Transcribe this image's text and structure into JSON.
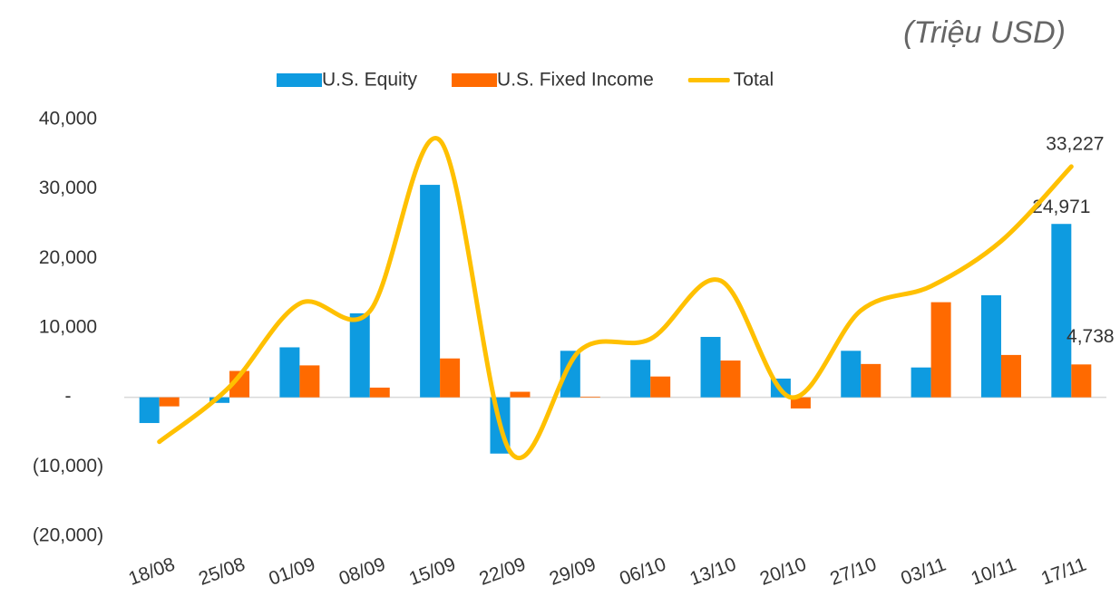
{
  "chart_data": {
    "type": "bar-line",
    "subtitle": "(Triệu USD)",
    "categories": [
      "18/08",
      "25/08",
      "01/09",
      "08/09",
      "15/09",
      "22/09",
      "29/09",
      "06/10",
      "13/10",
      "20/10",
      "27/10",
      "03/11",
      "10/11",
      "17/11"
    ],
    "series": [
      {
        "name": "U.S. Equity",
        "type": "bar",
        "color": "#0e9be0",
        "values": [
          -3700,
          -800,
          7200,
          12100,
          30600,
          -8100,
          6700,
          5400,
          8700,
          2700,
          6700,
          4300,
          14700,
          24971
        ],
        "value_labels": [
          null,
          null,
          null,
          null,
          null,
          null,
          null,
          null,
          null,
          null,
          null,
          null,
          null,
          "24,971"
        ]
      },
      {
        "name": "U.S. Fixed Income",
        "type": "bar",
        "color": "#ff6a00",
        "values": [
          -1300,
          3800,
          4600,
          1400,
          5600,
          800,
          100,
          3000,
          5300,
          -1600,
          4800,
          13700,
          6100,
          4738
        ],
        "value_labels": [
          null,
          null,
          null,
          null,
          null,
          null,
          null,
          null,
          null,
          null,
          null,
          null,
          null,
          "4,738"
        ]
      },
      {
        "name": "Total",
        "type": "line",
        "color": "#ffc000",
        "values": [
          -6400,
          1500,
          13500,
          12400,
          37000,
          -7800,
          6800,
          8400,
          16800,
          0,
          12500,
          16000,
          22500,
          33227
        ],
        "value_labels": [
          null,
          null,
          null,
          null,
          null,
          null,
          null,
          null,
          null,
          null,
          null,
          null,
          null,
          "33,227"
        ]
      }
    ],
    "ylim": [
      -20000,
      40000
    ],
    "yticks": [
      {
        "value": -20000,
        "label": "(20,000)"
      },
      {
        "value": -10000,
        "label": "(10,000)"
      },
      {
        "value": 0,
        "label": "-"
      },
      {
        "value": 10000,
        "label": "10,000"
      },
      {
        "value": 20000,
        "label": "20,000"
      },
      {
        "value": 30000,
        "label": "30,000"
      },
      {
        "value": 40000,
        "label": "40,000"
      }
    ],
    "legend": "top"
  }
}
